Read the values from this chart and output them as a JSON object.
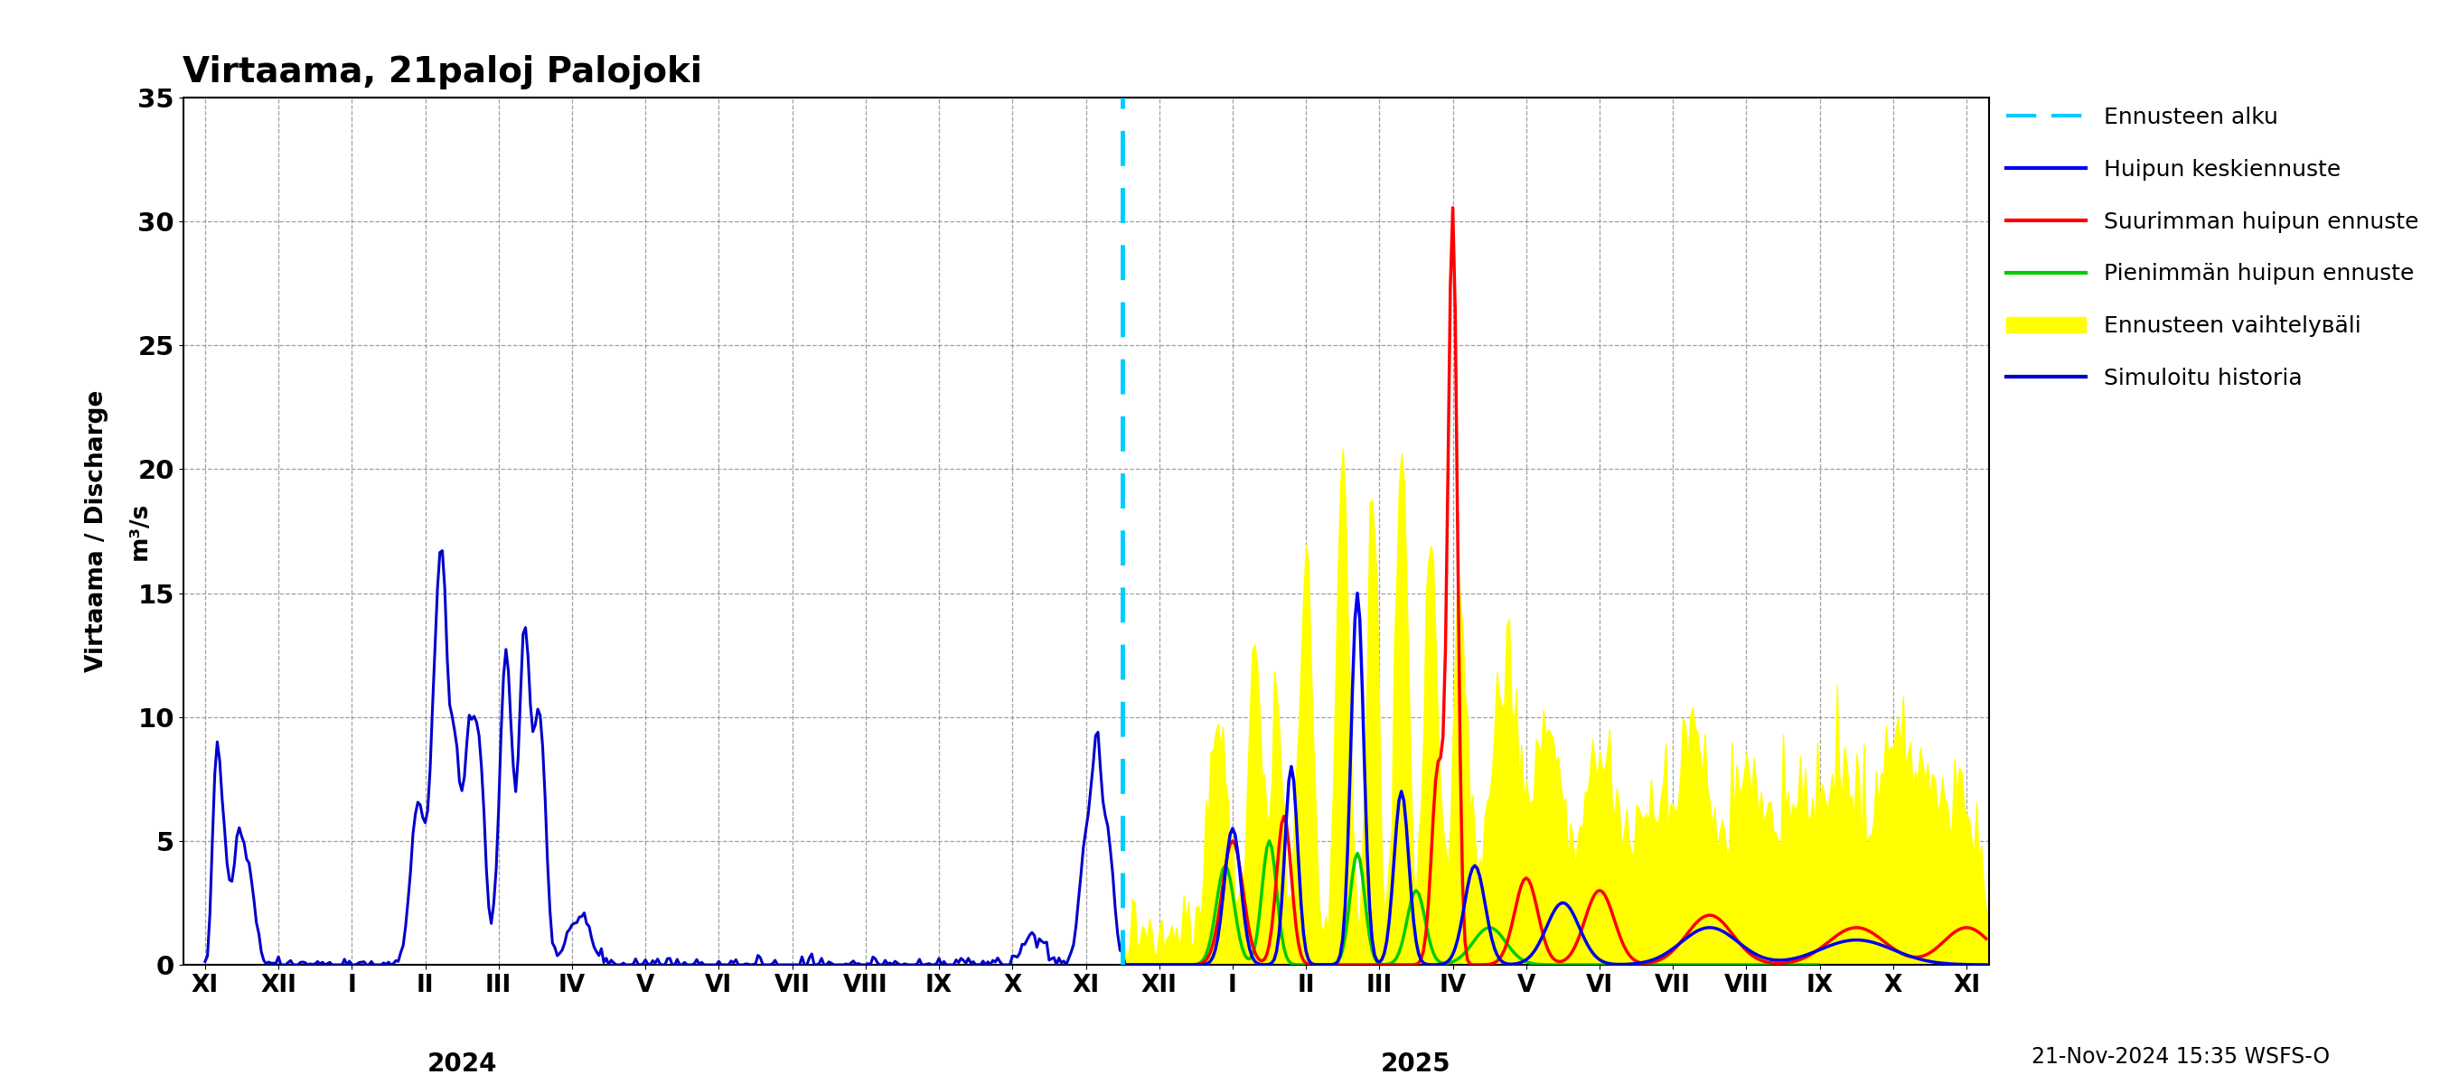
{
  "title": "Virtaama, 21paloj Palojoki",
  "ylabel_left": "Virtaama / Discharge",
  "ylabel_right": "m³/s",
  "ylim": [
    0,
    35
  ],
  "yticks": [
    0,
    5,
    10,
    15,
    20,
    25,
    30,
    35
  ],
  "footer_text": "21-Nov-2024 15:35 WSFS-O",
  "forecast_start_x": 12.5,
  "colors": {
    "simuloitu_historia": "#0000CC",
    "huipun_keskiennuste": "#0000EE",
    "suurimman_huipun": "#FF0000",
    "pienimman_huipun": "#00CC00",
    "vaihteluvali": "#FFFF00",
    "ennusteen_alku": "#00CCFF"
  },
  "x_tick_labels": [
    "XI",
    "XII",
    "I",
    "II",
    "III",
    "IV",
    "V",
    "VI",
    "VII",
    "VIII",
    "IX",
    "X",
    "XI",
    "XII",
    "I",
    "II",
    "III",
    "IV",
    "V",
    "VI",
    "VII",
    "VIII",
    "IX",
    "X",
    "XI"
  ],
  "x_tick_positions": [
    0,
    1,
    2,
    3,
    4,
    5,
    6,
    7,
    8,
    9,
    10,
    11,
    12,
    13,
    14,
    15,
    16,
    17,
    18,
    19,
    20,
    21,
    22,
    23,
    24
  ],
  "year_labels": [
    {
      "label": "2024",
      "x": 3.5
    },
    {
      "label": "2025",
      "x": 16.5
    }
  ],
  "xlim": [
    -0.3,
    24.3
  ]
}
